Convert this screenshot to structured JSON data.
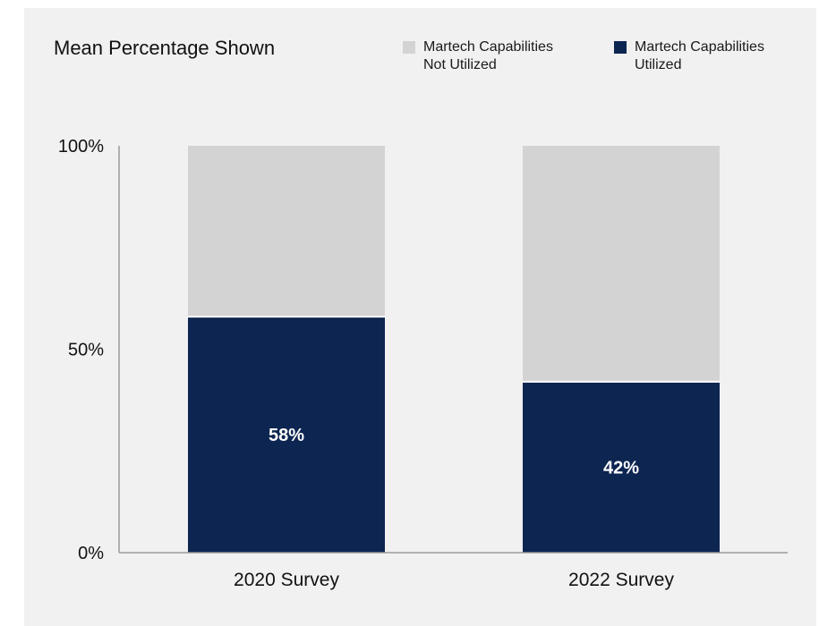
{
  "chart_data": {
    "type": "bar",
    "stacked": true,
    "title": "Mean Percentage Shown",
    "categories": [
      "2020 Survey",
      "2022 Survey"
    ],
    "series": [
      {
        "name": "Martech Capabilities Utilized",
        "values": [
          58,
          42
        ],
        "color": "#0d2551",
        "data_labels": [
          "58%",
          "42%"
        ]
      },
      {
        "name": "Martech Capabilities Not Utilized",
        "values": [
          42,
          58
        ],
        "color": "#d3d3d3"
      }
    ],
    "ylim": [
      0,
      100
    ],
    "yticks": [
      0,
      50,
      100
    ],
    "ytick_labels": [
      "0%",
      "50%",
      "100%"
    ],
    "xlabel": "",
    "ylabel": "",
    "grid": false,
    "legend_position": "top-right",
    "legend": [
      {
        "line1": "Martech Capabilities",
        "line2": "Not Utilized",
        "color": "#d3d3d3"
      },
      {
        "line1": "Martech Capabilities",
        "line2": "Utilized",
        "color": "#0d2551"
      }
    ]
  }
}
